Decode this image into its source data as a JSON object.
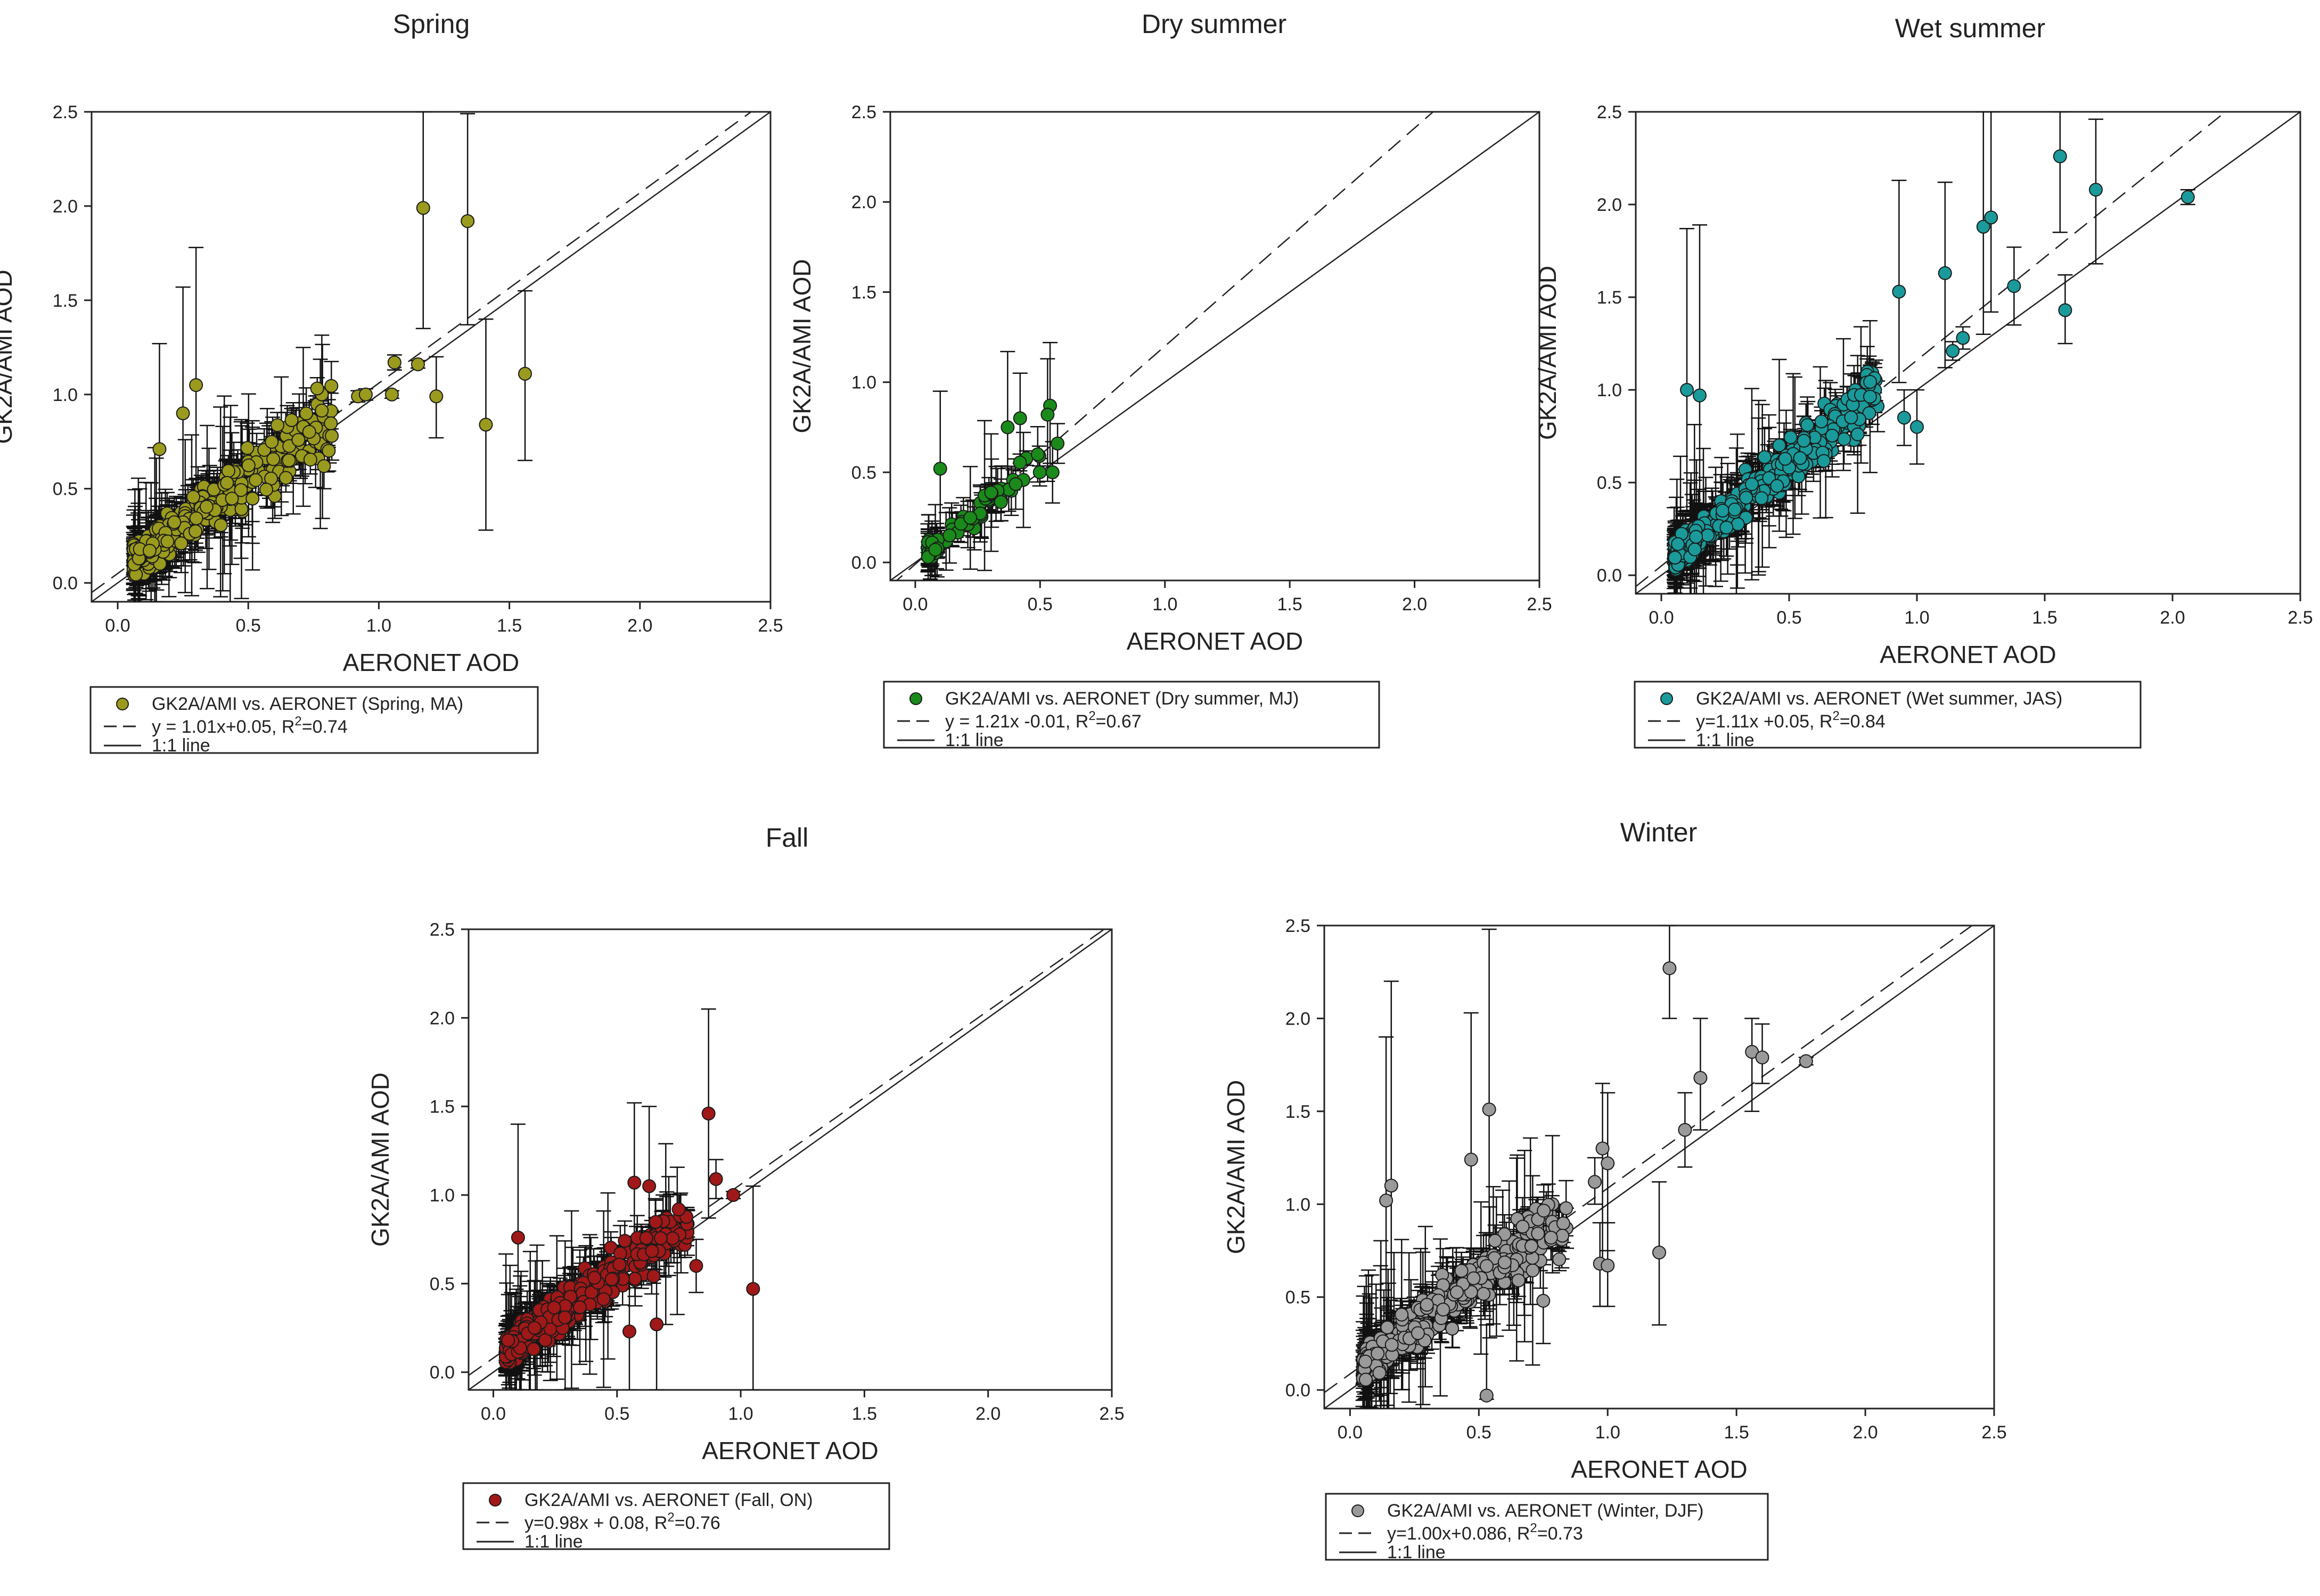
{
  "colors": {
    "frame": "#222222",
    "errorbar": "#111111",
    "background": "#ffffff"
  },
  "chart_data": [
    {
      "type": "scatter",
      "title": "Spring",
      "xlabel": "AERONET AOD",
      "ylabel": "GK2A/AMI AOD",
      "xlim": [
        -0.1,
        2.5
      ],
      "ylim": [
        -0.1,
        2.5
      ],
      "ticks": [
        "0.0",
        "0.5",
        "1.0",
        "1.5",
        "2.0",
        "2.5"
      ],
      "marker_color": "#9a9a1e",
      "fit": {
        "slope": 1.01,
        "intercept": 0.05
      },
      "legend": {
        "series_label": "GK2A/AMI vs. AERONET (Spring, MA)",
        "fit_label": "y = 1.01x+0.05, R",
        "fit_r2": "=0.74",
        "line_label": "1:1 line"
      },
      "highlight_points": [
        {
          "x": 1.17,
          "y": 1.99,
          "lo": 1.35,
          "hi": 2.5
        },
        {
          "x": 1.34,
          "y": 1.92,
          "lo": 1.37,
          "hi": 2.49
        },
        {
          "x": 1.56,
          "y": 1.11,
          "lo": 0.65,
          "hi": 1.55
        },
        {
          "x": 1.41,
          "y": 0.84,
          "lo": 0.28,
          "hi": 1.4
        },
        {
          "x": 1.22,
          "y": 0.99,
          "lo": 0.77,
          "hi": 1.2
        },
        {
          "x": 1.05,
          "y": 1.0,
          "lo": 0.98,
          "hi": 1.02
        },
        {
          "x": 1.06,
          "y": 1.17,
          "lo": 1.13,
          "hi": 1.21
        },
        {
          "x": 1.15,
          "y": 1.16,
          "lo": 1.14,
          "hi": 1.18
        },
        {
          "x": 0.92,
          "y": 0.99,
          "lo": 0.96,
          "hi": 1.02
        },
        {
          "x": 0.95,
          "y": 1.0,
          "lo": 0.97,
          "hi": 1.03
        },
        {
          "x": 0.3,
          "y": 1.05,
          "lo": 0.45,
          "hi": 1.78
        },
        {
          "x": 0.25,
          "y": 0.9,
          "lo": 0.4,
          "hi": 1.57
        },
        {
          "x": 0.16,
          "y": 0.71,
          "lo": 0.3,
          "hi": 1.27
        },
        {
          "x": 0.79,
          "y": 0.62,
          "lo": 0.5,
          "hi": 0.75
        }
      ],
      "cloud": {
        "count": 400,
        "xmin": 0.06,
        "xmax": 0.82,
        "slope": 1.01,
        "intercept": 0.05,
        "spread": 0.13,
        "seed": 11
      }
    },
    {
      "type": "scatter",
      "title": "Dry summer",
      "xlabel": "AERONET AOD",
      "ylabel": "GK2A/AMI AOD",
      "xlim": [
        -0.1,
        2.5
      ],
      "ylim": [
        -0.1,
        2.5
      ],
      "ticks": [
        "0.0",
        "0.5",
        "1.0",
        "1.5",
        "2.0",
        "2.5"
      ],
      "marker_color": "#1a8a1a",
      "fit": {
        "slope": 1.21,
        "intercept": -0.01
      },
      "legend": {
        "series_label": "GK2A/AMI vs. AERONET (Dry summer, MJ)",
        "fit_label": "y = 1.21x -0.01, R",
        "fit_r2": "=0.67",
        "line_label": "1:1 line"
      },
      "highlight_points": [
        {
          "x": 0.54,
          "y": 0.87,
          "lo": 0.55,
          "hi": 1.22
        },
        {
          "x": 0.53,
          "y": 0.82,
          "lo": 0.45,
          "hi": 1.13
        },
        {
          "x": 0.42,
          "y": 0.8,
          "lo": 0.55,
          "hi": 1.05
        },
        {
          "x": 0.37,
          "y": 0.75,
          "lo": 0.4,
          "hi": 1.17
        },
        {
          "x": 0.1,
          "y": 0.52,
          "lo": 0.12,
          "hi": 0.95
        },
        {
          "x": 0.57,
          "y": 0.66,
          "lo": 0.55,
          "hi": 0.77
        },
        {
          "x": 0.55,
          "y": 0.5,
          "lo": 0.33,
          "hi": 0.67
        }
      ],
      "cloud": {
        "count": 70,
        "xmin": 0.05,
        "xmax": 0.5,
        "slope": 1.21,
        "intercept": -0.01,
        "spread": 0.1,
        "seed": 23
      }
    },
    {
      "type": "scatter",
      "title": "Wet summer",
      "xlabel": "AERONET AOD",
      "ylabel": "GK2A/AMI AOD",
      "xlim": [
        -0.1,
        2.5
      ],
      "ylim": [
        -0.1,
        2.5
      ],
      "ticks": [
        "0.0",
        "0.5",
        "1.0",
        "1.5",
        "2.0",
        "2.5"
      ],
      "marker_color": "#1a9a9a",
      "fit": {
        "slope": 1.11,
        "intercept": 0.05
      },
      "legend": {
        "series_label": "GK2A/AMI vs. AERONET (Wet summer, JAS)",
        "fit_label": "y=1.11x +0.05, R",
        "fit_r2": "=0.84",
        "line_label": "1:1 line"
      },
      "highlight_points": [
        {
          "x": 1.56,
          "y": 2.26,
          "lo": 1.85,
          "hi": 2.5
        },
        {
          "x": 1.7,
          "y": 2.08,
          "lo": 1.68,
          "hi": 2.46
        },
        {
          "x": 1.26,
          "y": 1.88,
          "lo": 1.3,
          "hi": 2.5
        },
        {
          "x": 1.29,
          "y": 1.93,
          "lo": 1.42,
          "hi": 2.5
        },
        {
          "x": 1.11,
          "y": 1.63,
          "lo": 1.12,
          "hi": 2.12
        },
        {
          "x": 0.93,
          "y": 1.53,
          "lo": 1.04,
          "hi": 2.13
        },
        {
          "x": 2.06,
          "y": 2.04,
          "lo": 2.0,
          "hi": 2.08
        },
        {
          "x": 1.38,
          "y": 1.56,
          "lo": 1.35,
          "hi": 1.77
        },
        {
          "x": 1.58,
          "y": 1.43,
          "lo": 1.25,
          "hi": 1.62
        },
        {
          "x": 1.18,
          "y": 1.28,
          "lo": 1.22,
          "hi": 1.34
        },
        {
          "x": 1.14,
          "y": 1.21,
          "lo": 1.16,
          "hi": 1.26
        },
        {
          "x": 1.0,
          "y": 0.8,
          "lo": 0.6,
          "hi": 1.0
        },
        {
          "x": 0.1,
          "y": 1.0,
          "lo": 0.35,
          "hi": 1.87
        },
        {
          "x": 0.15,
          "y": 0.97,
          "lo": 0.3,
          "hi": 1.89
        },
        {
          "x": 0.95,
          "y": 0.85,
          "lo": 0.7,
          "hi": 1.0
        }
      ],
      "cloud": {
        "count": 420,
        "xmin": 0.05,
        "xmax": 0.85,
        "slope": 1.11,
        "intercept": 0.05,
        "spread": 0.12,
        "seed": 37
      }
    },
    {
      "type": "scatter",
      "title": "Fall",
      "xlabel": "AERONET AOD",
      "ylabel": "GK2A/AMI AOD",
      "xlim": [
        -0.1,
        2.5
      ],
      "ylim": [
        -0.1,
        2.5
      ],
      "ticks": [
        "0.0",
        "0.5",
        "1.0",
        "1.5",
        "2.0",
        "2.5"
      ],
      "marker_color": "#a01818",
      "fit": {
        "slope": 0.98,
        "intercept": 0.08
      },
      "legend": {
        "series_label": "GK2A/AMI vs. AERONET (Fall, ON)",
        "fit_label": "y=0.98x + 0.08, R",
        "fit_r2": "=0.76",
        "line_label": "1:1 line"
      },
      "highlight_points": [
        {
          "x": 0.87,
          "y": 1.46,
          "lo": 0.87,
          "hi": 2.05
        },
        {
          "x": 1.05,
          "y": 0.47,
          "lo": -0.1,
          "hi": 1.05
        },
        {
          "x": 0.55,
          "y": 0.23,
          "lo": -0.1,
          "hi": 0.55
        },
        {
          "x": 0.66,
          "y": 0.27,
          "lo": -0.1,
          "hi": 0.63
        },
        {
          "x": 0.97,
          "y": 1.0,
          "lo": 0.98,
          "hi": 1.02
        },
        {
          "x": 0.9,
          "y": 1.09,
          "lo": 0.98,
          "hi": 1.2
        },
        {
          "x": 0.63,
          "y": 1.05,
          "lo": 0.6,
          "hi": 1.5
        },
        {
          "x": 0.57,
          "y": 1.07,
          "lo": 0.6,
          "hi": 1.52
        },
        {
          "x": 0.1,
          "y": 0.76,
          "lo": 0.12,
          "hi": 1.4
        },
        {
          "x": 0.82,
          "y": 0.6,
          "lo": 0.45,
          "hi": 0.75
        }
      ],
      "cloud": {
        "count": 380,
        "xmin": 0.05,
        "xmax": 0.8,
        "slope": 0.98,
        "intercept": 0.08,
        "spread": 0.12,
        "seed": 53
      }
    },
    {
      "type": "scatter",
      "title": "Winter",
      "xlabel": "AERONET AOD",
      "ylabel": "GK2A/AMI AOD",
      "xlim": [
        -0.1,
        2.5
      ],
      "ylim": [
        -0.1,
        2.5
      ],
      "ticks": [
        "0.0",
        "0.5",
        "1.0",
        "1.5",
        "2.0",
        "2.5"
      ],
      "marker_color": "#9a9a9a",
      "fit": {
        "slope": 1.0,
        "intercept": 0.086
      },
      "legend": {
        "series_label": "GK2A/AMI vs. AERONET (Winter, DJF)",
        "fit_label": "y=1.00x+0.086, R",
        "fit_r2": "=0.73",
        "line_label": "1:1 line"
      },
      "highlight_points": [
        {
          "x": 1.24,
          "y": 2.27,
          "lo": 2.0,
          "hi": 2.5
        },
        {
          "x": 1.56,
          "y": 1.82,
          "lo": 1.5,
          "hi": 2.0
        },
        {
          "x": 1.6,
          "y": 1.79,
          "lo": 1.65,
          "hi": 1.97
        },
        {
          "x": 1.77,
          "y": 1.77,
          "lo": 1.75,
          "hi": 1.79
        },
        {
          "x": 1.36,
          "y": 1.68,
          "lo": 1.4,
          "hi": 2.0
        },
        {
          "x": 1.3,
          "y": 1.4,
          "lo": 1.2,
          "hi": 1.6
        },
        {
          "x": 0.54,
          "y": 1.51,
          "lo": 0.55,
          "hi": 2.48
        },
        {
          "x": 0.47,
          "y": 1.24,
          "lo": 0.5,
          "hi": 2.03
        },
        {
          "x": 1.2,
          "y": 0.74,
          "lo": 0.35,
          "hi": 1.12
        },
        {
          "x": 0.98,
          "y": 1.3,
          "lo": 0.7,
          "hi": 1.65
        },
        {
          "x": 1.0,
          "y": 1.22,
          "lo": 0.75,
          "hi": 1.6
        },
        {
          "x": 0.97,
          "y": 0.68,
          "lo": 0.45,
          "hi": 0.9
        },
        {
          "x": 1.0,
          "y": 0.67,
          "lo": 0.45,
          "hi": 0.9
        },
        {
          "x": 0.95,
          "y": 1.12,
          "lo": 1.0,
          "hi": 1.25
        },
        {
          "x": 0.14,
          "y": 1.02,
          "lo": 0.25,
          "hi": 1.9
        },
        {
          "x": 0.16,
          "y": 1.1,
          "lo": 0.3,
          "hi": 2.2
        },
        {
          "x": 0.53,
          "y": -0.03,
          "lo": -0.05,
          "hi": 0.35
        },
        {
          "x": 0.75,
          "y": 0.48,
          "lo": 0.25,
          "hi": 0.7
        },
        {
          "x": 0.78,
          "y": 0.82,
          "lo": 0.7,
          "hi": 0.9
        }
      ],
      "cloud": {
        "count": 360,
        "xmin": 0.05,
        "xmax": 0.85,
        "slope": 1.0,
        "intercept": 0.086,
        "spread": 0.13,
        "seed": 71
      }
    }
  ]
}
